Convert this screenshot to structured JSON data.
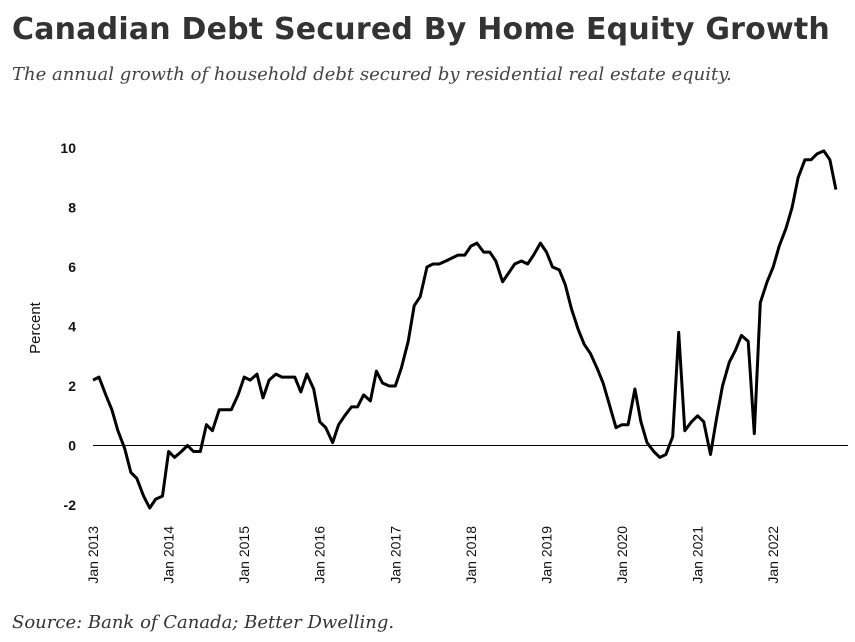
{
  "header": {
    "title": "Canadian Debt Secured By Home Equity Growth",
    "subtitle": "The annual growth of household debt secured by residential real estate equity."
  },
  "footer": {
    "source": "Source: Bank of Canada; Better Dwelling."
  },
  "colors": {
    "line": "#000000",
    "zero_line": "#000000",
    "text": "#333333"
  },
  "chart_data": {
    "type": "line",
    "title": "Canadian Debt Secured By Home Equity Growth",
    "subtitle": "The annual growth of household debt secured by residential real estate equity.",
    "xlabel": "",
    "ylabel": "Percent",
    "xlim": [
      2013.0,
      2022.99
    ],
    "ylim": [
      -2.3,
      10.4
    ],
    "yticks": [
      -2,
      0,
      2,
      4,
      6,
      8,
      10
    ],
    "xticks": [
      {
        "x": 2013,
        "label": "Jan 2013"
      },
      {
        "x": 2014,
        "label": "Jan 2014"
      },
      {
        "x": 2015,
        "label": "Jan 2015"
      },
      {
        "x": 2016,
        "label": "Jan 2016"
      },
      {
        "x": 2017,
        "label": "Jan 2017"
      },
      {
        "x": 2018,
        "label": "Jan 2018"
      },
      {
        "x": 2019,
        "label": "Jan 2019"
      },
      {
        "x": 2020,
        "label": "Jan 2020"
      },
      {
        "x": 2021,
        "label": "Jan 2021"
      },
      {
        "x": 2022,
        "label": "Jan 2022"
      }
    ],
    "grid": false,
    "zero_line": true,
    "series": [
      {
        "name": "",
        "values": [
          [
            2013.0,
            2.2
          ],
          [
            2013.08,
            2.3
          ],
          [
            2013.17,
            1.7
          ],
          [
            2013.25,
            1.2
          ],
          [
            2013.33,
            0.5
          ],
          [
            2013.42,
            -0.1
          ],
          [
            2013.5,
            -0.9
          ],
          [
            2013.58,
            -1.1
          ],
          [
            2013.67,
            -1.7
          ],
          [
            2013.75,
            -2.1
          ],
          [
            2013.83,
            -1.8
          ],
          [
            2013.92,
            -1.7
          ],
          [
            2014.0,
            -0.2
          ],
          [
            2014.08,
            -0.4
          ],
          [
            2014.17,
            -0.2
          ],
          [
            2014.25,
            0.0
          ],
          [
            2014.33,
            -0.2
          ],
          [
            2014.42,
            -0.2
          ],
          [
            2014.5,
            0.7
          ],
          [
            2014.58,
            0.5
          ],
          [
            2014.67,
            1.2
          ],
          [
            2014.75,
            1.2
          ],
          [
            2014.83,
            1.2
          ],
          [
            2014.92,
            1.7
          ],
          [
            2015.0,
            2.3
          ],
          [
            2015.08,
            2.2
          ],
          [
            2015.17,
            2.4
          ],
          [
            2015.25,
            1.6
          ],
          [
            2015.33,
            2.2
          ],
          [
            2015.42,
            2.4
          ],
          [
            2015.5,
            2.3
          ],
          [
            2015.58,
            2.3
          ],
          [
            2015.67,
            2.3
          ],
          [
            2015.75,
            1.8
          ],
          [
            2015.83,
            2.4
          ],
          [
            2015.92,
            1.9
          ],
          [
            2016.0,
            0.8
          ],
          [
            2016.08,
            0.6
          ],
          [
            2016.17,
            0.1
          ],
          [
            2016.25,
            0.7
          ],
          [
            2016.33,
            1.0
          ],
          [
            2016.42,
            1.3
          ],
          [
            2016.5,
            1.3
          ],
          [
            2016.58,
            1.7
          ],
          [
            2016.67,
            1.5
          ],
          [
            2016.75,
            2.5
          ],
          [
            2016.83,
            2.1
          ],
          [
            2016.92,
            2.0
          ],
          [
            2017.0,
            2.0
          ],
          [
            2017.08,
            2.6
          ],
          [
            2017.17,
            3.5
          ],
          [
            2017.25,
            4.7
          ],
          [
            2017.33,
            5.0
          ],
          [
            2017.42,
            6.0
          ],
          [
            2017.5,
            6.1
          ],
          [
            2017.58,
            6.1
          ],
          [
            2017.67,
            6.2
          ],
          [
            2017.75,
            6.3
          ],
          [
            2017.83,
            6.4
          ],
          [
            2017.92,
            6.4
          ],
          [
            2018.0,
            6.7
          ],
          [
            2018.08,
            6.8
          ],
          [
            2018.17,
            6.5
          ],
          [
            2018.25,
            6.5
          ],
          [
            2018.33,
            6.2
          ],
          [
            2018.42,
            5.5
          ],
          [
            2018.5,
            5.8
          ],
          [
            2018.58,
            6.1
          ],
          [
            2018.67,
            6.2
          ],
          [
            2018.75,
            6.1
          ],
          [
            2018.83,
            6.4
          ],
          [
            2018.92,
            6.8
          ],
          [
            2019.0,
            6.5
          ],
          [
            2019.08,
            6.0
          ],
          [
            2019.17,
            5.9
          ],
          [
            2019.25,
            5.4
          ],
          [
            2019.33,
            4.6
          ],
          [
            2019.42,
            3.9
          ],
          [
            2019.5,
            3.4
          ],
          [
            2019.58,
            3.1
          ],
          [
            2019.67,
            2.6
          ],
          [
            2019.75,
            2.1
          ],
          [
            2019.83,
            1.4
          ],
          [
            2019.92,
            0.6
          ],
          [
            2020.0,
            0.7
          ],
          [
            2020.08,
            0.7
          ],
          [
            2020.17,
            1.9
          ],
          [
            2020.25,
            0.8
          ],
          [
            2020.33,
            0.1
          ],
          [
            2020.42,
            -0.2
          ],
          [
            2020.5,
            -0.4
          ],
          [
            2020.58,
            -0.3
          ],
          [
            2020.67,
            0.3
          ],
          [
            2020.75,
            3.8
          ],
          [
            2020.83,
            0.5
          ],
          [
            2020.92,
            0.8
          ],
          [
            2021.0,
            1.0
          ],
          [
            2021.08,
            0.8
          ],
          [
            2021.17,
            -0.3
          ],
          [
            2021.25,
            0.9
          ],
          [
            2021.33,
            2.0
          ],
          [
            2021.42,
            2.8
          ],
          [
            2021.5,
            3.2
          ],
          [
            2021.58,
            3.7
          ],
          [
            2021.67,
            3.5
          ],
          [
            2021.75,
            0.4
          ],
          [
            2021.83,
            4.8
          ],
          [
            2021.92,
            5.5
          ],
          [
            2022.0,
            6.0
          ],
          [
            2022.08,
            6.7
          ],
          [
            2022.17,
            7.3
          ],
          [
            2022.25,
            8.0
          ],
          [
            2022.33,
            9.0
          ],
          [
            2022.42,
            9.6
          ],
          [
            2022.5,
            9.6
          ],
          [
            2022.58,
            9.8
          ],
          [
            2022.67,
            9.9
          ],
          [
            2022.75,
            9.6
          ],
          [
            2022.83,
            8.6
          ]
        ]
      }
    ]
  }
}
